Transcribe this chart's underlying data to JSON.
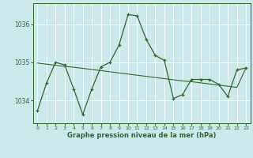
{
  "x": [
    0,
    1,
    2,
    3,
    4,
    5,
    6,
    7,
    8,
    9,
    10,
    11,
    12,
    13,
    14,
    15,
    16,
    17,
    18,
    19,
    20,
    21,
    22,
    23
  ],
  "y_main": [
    1033.73,
    1034.45,
    1035.0,
    1034.93,
    1034.3,
    1033.63,
    1034.3,
    1034.88,
    1035.0,
    1035.45,
    1036.25,
    1036.22,
    1035.6,
    1035.18,
    1035.05,
    1034.05,
    1034.15,
    1034.55,
    1034.55,
    1034.55,
    1034.42,
    1034.1,
    1034.8,
    1034.85
  ],
  "y_trend": [
    1034.98,
    1034.95,
    1034.92,
    1034.89,
    1034.87,
    1034.84,
    1034.81,
    1034.78,
    1034.75,
    1034.72,
    1034.69,
    1034.66,
    1034.63,
    1034.6,
    1034.57,
    1034.54,
    1034.51,
    1034.49,
    1034.46,
    1034.43,
    1034.4,
    1034.37,
    1034.34,
    1034.85
  ],
  "line_color": "#2d6a2d",
  "bg_color": "#cce8ea",
  "grid_color": "#b0d8db",
  "ylabel_ticks": [
    1034,
    1035,
    1036
  ],
  "xlabel": "Graphe pression niveau de la mer (hPa)",
  "ylim": [
    1033.4,
    1036.55
  ],
  "xlim": [
    -0.5,
    23.5
  ]
}
